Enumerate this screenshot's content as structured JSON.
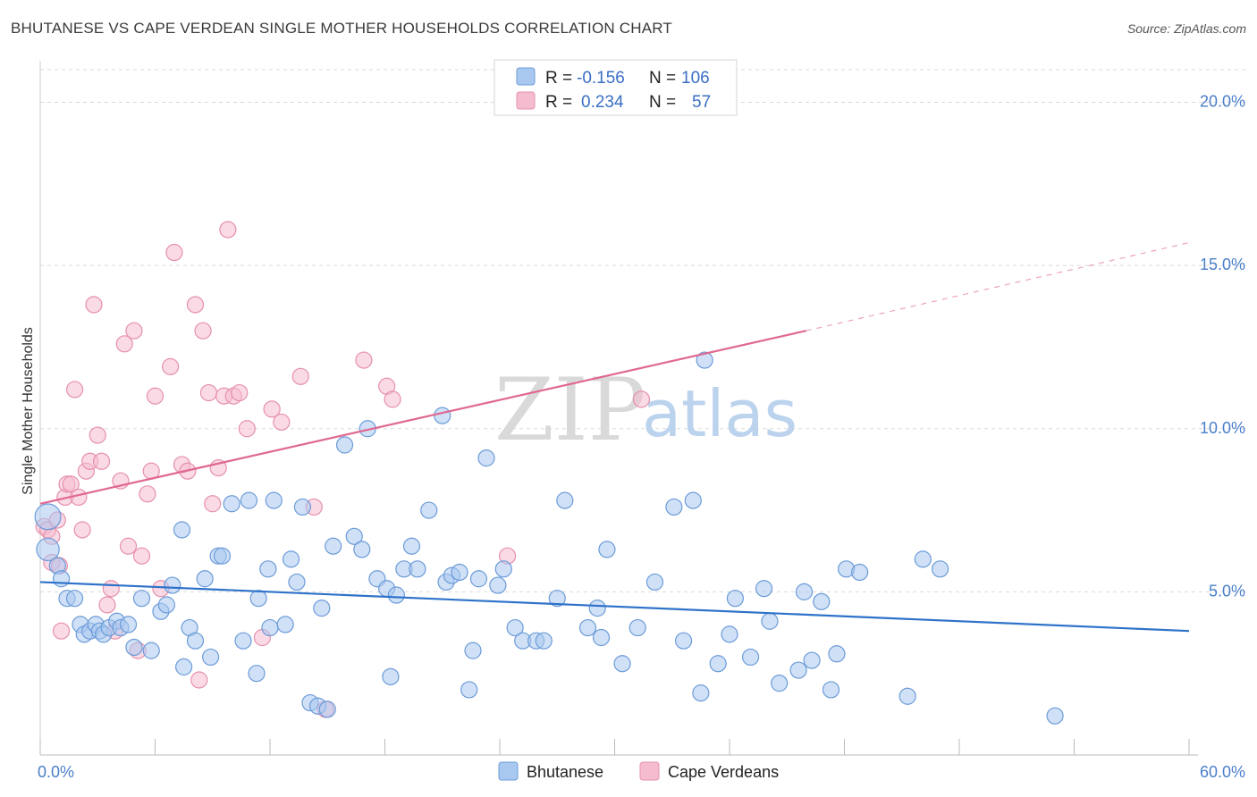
{
  "title": "BHUTANESE VS CAPE VERDEAN SINGLE MOTHER HOUSEHOLDS CORRELATION CHART",
  "source": "Source: ZipAtlas.com",
  "watermark": {
    "zip": "ZIP",
    "atlas": "atlas"
  },
  "colors": {
    "blue_fill": "#a9c8f0",
    "blue_stroke": "#6b9bd8",
    "blue_line": "#2e72c9",
    "pink_fill": "#f5bcd0",
    "pink_stroke": "#e690ad",
    "pink_line": "#e06890",
    "tick": "#4a7fc9",
    "grid": "#d9d9d9"
  },
  "legend": {
    "rows": [
      {
        "r_label": "R =",
        "r_value": "-0.156",
        "n_label": "N =",
        "n_value": "106"
      },
      {
        "r_label": "R =",
        "r_value": "0.234",
        "n_label": "N =",
        "n_value": "57"
      }
    ]
  },
  "chart_data": {
    "type": "scatter",
    "ylabel": "Single Mother Households",
    "xlim": [
      0,
      60
    ],
    "ylim": [
      0,
      21
    ],
    "x_tick_labels": [
      "0.0%",
      "60.0%"
    ],
    "y_ticks": [
      5,
      10,
      15,
      20
    ],
    "y_tick_labels": [
      "5.0%",
      "10.0%",
      "15.0%",
      "20.0%"
    ],
    "grid": true,
    "legend_position": "top-center",
    "series": [
      {
        "name": "Bhutanese",
        "color": "#a9c8f0",
        "trend": {
          "x": [
            0,
            60
          ],
          "y": [
            5.3,
            3.8
          ],
          "style": "solid"
        },
        "points": [
          [
            0.4,
            7.3,
            1.6
          ],
          [
            0.4,
            6.3,
            1.4
          ],
          [
            0.9,
            5.8,
            1
          ],
          [
            1.1,
            5.4,
            1
          ],
          [
            1.4,
            4.8,
            1
          ],
          [
            1.8,
            4.8,
            1
          ],
          [
            2.1,
            4.0,
            1
          ],
          [
            2.3,
            3.7,
            1
          ],
          [
            2.6,
            3.8,
            1
          ],
          [
            2.9,
            4.0,
            1
          ],
          [
            3.1,
            3.8,
            1
          ],
          [
            3.3,
            3.7,
            1
          ],
          [
            3.6,
            3.9,
            1
          ],
          [
            4.0,
            4.1,
            1
          ],
          [
            4.2,
            3.9,
            1
          ],
          [
            4.6,
            4.0,
            1
          ],
          [
            4.9,
            3.3,
            1
          ],
          [
            5.3,
            4.8,
            1
          ],
          [
            5.8,
            3.2,
            1
          ],
          [
            6.3,
            4.4,
            1
          ],
          [
            6.6,
            4.6,
            1
          ],
          [
            6.9,
            5.2,
            1
          ],
          [
            7.4,
            6.9,
            1
          ],
          [
            7.5,
            2.7,
            1
          ],
          [
            7.8,
            3.9,
            1
          ],
          [
            8.1,
            3.5,
            1
          ],
          [
            8.6,
            5.4,
            1
          ],
          [
            8.9,
            3.0,
            1
          ],
          [
            9.3,
            6.1,
            1
          ],
          [
            9.5,
            6.1,
            1
          ],
          [
            10.0,
            7.7,
            1
          ],
          [
            10.6,
            3.5,
            1
          ],
          [
            10.9,
            7.8,
            1
          ],
          [
            11.3,
            2.5,
            1
          ],
          [
            11.4,
            4.8,
            1
          ],
          [
            11.9,
            5.7,
            1
          ],
          [
            12.2,
            7.8,
            1
          ],
          [
            12.0,
            3.9,
            1
          ],
          [
            12.8,
            4.0,
            1
          ],
          [
            13.1,
            6.0,
            1
          ],
          [
            13.4,
            5.3,
            1
          ],
          [
            13.7,
            7.6,
            1
          ],
          [
            14.1,
            1.6,
            1
          ],
          [
            14.5,
            1.5,
            1
          ],
          [
            14.7,
            4.5,
            1
          ],
          [
            15.0,
            1.4,
            1
          ],
          [
            15.3,
            6.4,
            1
          ],
          [
            15.9,
            9.5,
            1
          ],
          [
            16.4,
            6.7,
            1
          ],
          [
            16.8,
            6.3,
            1
          ],
          [
            17.1,
            10.0,
            1
          ],
          [
            17.6,
            5.4,
            1
          ],
          [
            18.1,
            5.1,
            1
          ],
          [
            18.3,
            2.4,
            1
          ],
          [
            18.6,
            4.9,
            1
          ],
          [
            19.0,
            5.7,
            1
          ],
          [
            19.4,
            6.4,
            1
          ],
          [
            19.7,
            5.7,
            1
          ],
          [
            20.3,
            7.5,
            1
          ],
          [
            21.0,
            10.4,
            1
          ],
          [
            21.2,
            5.3,
            1
          ],
          [
            21.5,
            5.5,
            1
          ],
          [
            21.9,
            5.6,
            1
          ],
          [
            22.4,
            2.0,
            1
          ],
          [
            22.6,
            3.2,
            1
          ],
          [
            22.9,
            5.4,
            1
          ],
          [
            23.3,
            9.1,
            1
          ],
          [
            23.9,
            5.2,
            1
          ],
          [
            24.2,
            5.7,
            1
          ],
          [
            24.8,
            3.9,
            1
          ],
          [
            25.2,
            3.5,
            1
          ],
          [
            25.9,
            3.5,
            1
          ],
          [
            26.3,
            3.5,
            1
          ],
          [
            27.0,
            4.8,
            1
          ],
          [
            27.4,
            7.8,
            1
          ],
          [
            28.6,
            3.9,
            1
          ],
          [
            29.1,
            4.5,
            1
          ],
          [
            29.3,
            3.6,
            1
          ],
          [
            29.6,
            6.3,
            1
          ],
          [
            30.4,
            2.8,
            1
          ],
          [
            31.2,
            3.9,
            1
          ],
          [
            32.1,
            5.3,
            1
          ],
          [
            33.1,
            7.6,
            1
          ],
          [
            33.6,
            3.5,
            1
          ],
          [
            34.1,
            7.8,
            1
          ],
          [
            34.5,
            1.9,
            1
          ],
          [
            34.7,
            12.1,
            1
          ],
          [
            35.4,
            2.8,
            1
          ],
          [
            36.0,
            3.7,
            1
          ],
          [
            36.3,
            4.8,
            1
          ],
          [
            37.1,
            3.0,
            1
          ],
          [
            37.8,
            5.1,
            1
          ],
          [
            38.1,
            4.1,
            1
          ],
          [
            38.6,
            2.2,
            1
          ],
          [
            39.6,
            2.6,
            1
          ],
          [
            39.9,
            5.0,
            1
          ],
          [
            40.3,
            2.9,
            1
          ],
          [
            40.8,
            4.7,
            1
          ],
          [
            41.3,
            2.0,
            1
          ],
          [
            41.6,
            3.1,
            1
          ],
          [
            42.1,
            5.7,
            1
          ],
          [
            42.8,
            5.6,
            1
          ],
          [
            45.3,
            1.8,
            1
          ],
          [
            46.1,
            6.0,
            1
          ],
          [
            47.0,
            5.7,
            1
          ],
          [
            53.0,
            1.2,
            1
          ]
        ]
      },
      {
        "name": "Cape Verdeans",
        "color": "#f5bcd0",
        "trend": {
          "x": [
            0,
            40
          ],
          "y": [
            7.7,
            13.0
          ],
          "style": "solid",
          "dashed_to": [
            60,
            15.7
          ]
        },
        "points": [
          [
            0.2,
            7.0,
            1
          ],
          [
            0.4,
            6.9,
            1
          ],
          [
            0.6,
            5.9,
            1
          ],
          [
            0.9,
            7.2,
            1
          ],
          [
            1.1,
            3.8,
            1
          ],
          [
            1.3,
            7.9,
            1
          ],
          [
            1.4,
            8.3,
            1
          ],
          [
            1.6,
            8.3,
            1
          ],
          [
            1.8,
            11.2,
            1
          ],
          [
            2.0,
            7.9,
            1
          ],
          [
            2.2,
            6.9,
            1
          ],
          [
            2.4,
            8.7,
            1
          ],
          [
            2.6,
            9.0,
            1
          ],
          [
            2.8,
            13.8,
            1
          ],
          [
            3.0,
            9.8,
            1
          ],
          [
            3.2,
            9.0,
            1
          ],
          [
            3.5,
            4.6,
            1
          ],
          [
            3.7,
            5.1,
            1
          ],
          [
            3.9,
            3.8,
            1
          ],
          [
            4.2,
            8.4,
            1
          ],
          [
            4.4,
            12.6,
            1
          ],
          [
            4.6,
            6.4,
            1
          ],
          [
            4.9,
            13.0,
            1
          ],
          [
            5.1,
            3.2,
            1
          ],
          [
            5.3,
            6.1,
            1
          ],
          [
            5.6,
            8.0,
            1
          ],
          [
            5.8,
            8.7,
            1
          ],
          [
            6.0,
            11.0,
            1
          ],
          [
            6.3,
            5.1,
            1
          ],
          [
            6.8,
            11.9,
            1
          ],
          [
            7.0,
            15.4,
            1
          ],
          [
            7.4,
            8.9,
            1
          ],
          [
            7.7,
            8.7,
            1
          ],
          [
            8.1,
            13.8,
            1
          ],
          [
            8.3,
            2.3,
            1
          ],
          [
            8.5,
            13.0,
            1
          ],
          [
            8.8,
            11.1,
            1
          ],
          [
            9.0,
            7.7,
            1
          ],
          [
            9.3,
            8.8,
            1
          ],
          [
            9.6,
            11.0,
            1
          ],
          [
            9.8,
            16.1,
            1
          ],
          [
            10.1,
            11.0,
            1
          ],
          [
            10.4,
            11.1,
            1
          ],
          [
            10.8,
            10.0,
            1
          ],
          [
            11.6,
            3.6,
            1
          ],
          [
            12.1,
            10.6,
            1
          ],
          [
            12.6,
            10.2,
            1
          ],
          [
            13.6,
            11.6,
            1
          ],
          [
            14.3,
            7.6,
            1
          ],
          [
            14.9,
            1.4,
            1
          ],
          [
            16.9,
            12.1,
            1
          ],
          [
            18.1,
            11.3,
            1
          ],
          [
            18.4,
            10.9,
            1
          ],
          [
            24.4,
            6.1,
            1
          ],
          [
            31.4,
            10.9,
            1
          ],
          [
            1.0,
            5.8,
            1
          ],
          [
            0.6,
            6.7,
            1
          ]
        ]
      }
    ]
  }
}
